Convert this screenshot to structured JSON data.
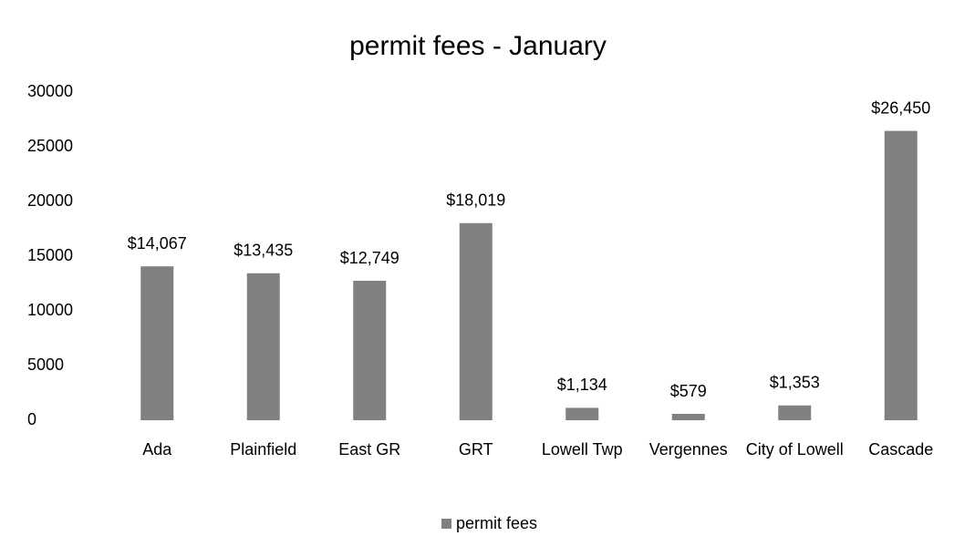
{
  "chart_data": {
    "type": "bar",
    "title": "permit fees - January",
    "categories": [
      "Ada",
      "Plainfield",
      "East GR",
      "GRT",
      "Lowell Twp",
      "Vergennes",
      "City of Lowell",
      "Cascade"
    ],
    "series": [
      {
        "name": "permit fees",
        "color": "#808080",
        "values": [
          14067,
          13435,
          12749,
          18019,
          1134,
          579,
          1353,
          26450
        ],
        "value_labels": [
          "$14,067",
          "$13,435",
          "$12,749",
          "$18,019",
          "$1,134",
          "$579",
          "$1,353",
          "$26,450"
        ]
      }
    ],
    "ylim": [
      0,
      30000
    ],
    "yticks": [
      0,
      5000,
      10000,
      15000,
      20000,
      25000,
      30000
    ],
    "grid": false,
    "legend": "bottom"
  }
}
